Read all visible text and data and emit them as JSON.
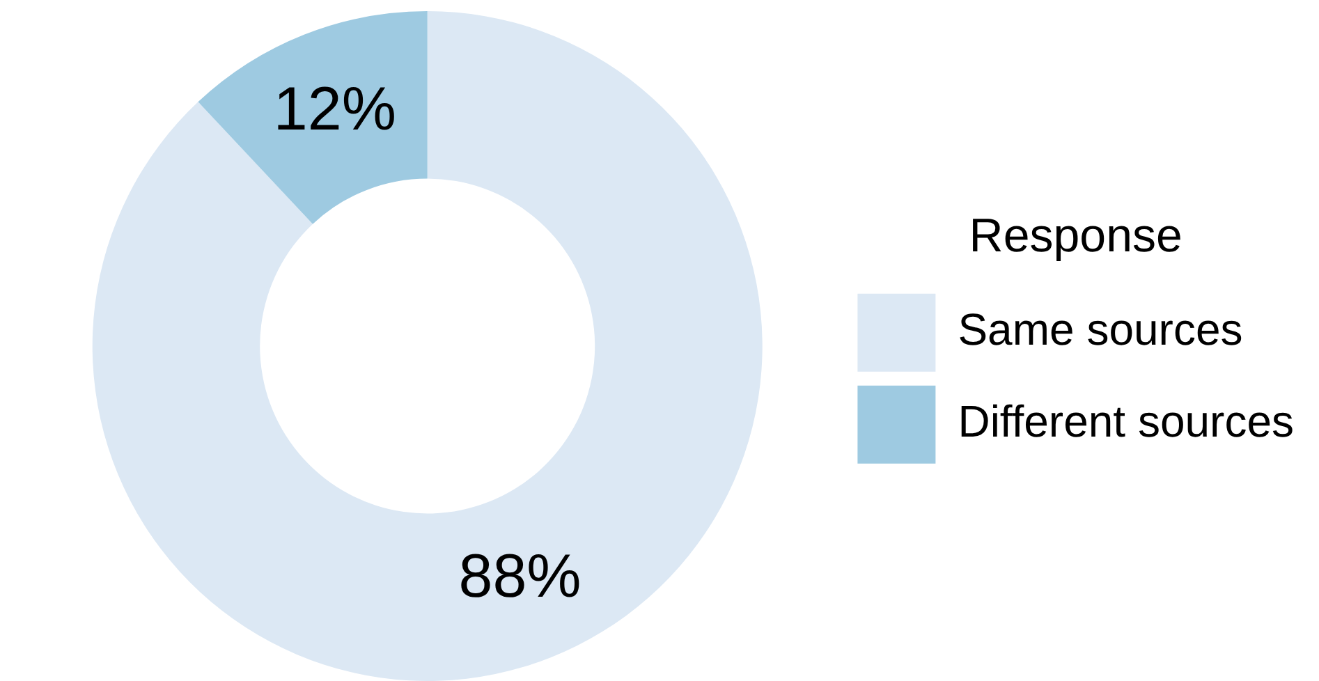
{
  "chart_data": {
    "type": "donut",
    "legend_title": "Response",
    "legend": "right",
    "categories": [
      "Same sources",
      "Different sources"
    ],
    "values": [
      88,
      12
    ],
    "colors": [
      "#dce8f4",
      "#9ecae1"
    ],
    "value_labels": [
      "88%",
      "12%"
    ]
  }
}
